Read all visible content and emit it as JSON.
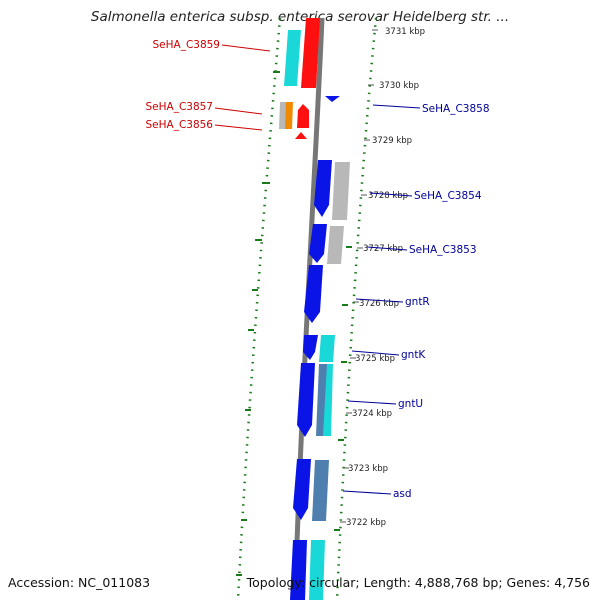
{
  "title": "Salmonella enterica subsp. enterica serovar Heidelberg str. ...",
  "footer": {
    "accession": "Accession: NC_011083",
    "info": "Topology: circular; Length: 4,888,768 bp; Genes: 4,756"
  },
  "kbp_labels": [
    "3731 kbp",
    "3730 kbp",
    "3729 kbp",
    "3728 kbp",
    "3727 kbp",
    "3726 kbp",
    "3725 kbp",
    "3724 kbp",
    "3723 kbp",
    "3722 kbp"
  ],
  "genes_left": [
    "SeHA_C3859",
    "SeHA_C3857",
    "SeHA_C3856"
  ],
  "genes_right": [
    "SeHA_C3858",
    "SeHA_C3854",
    "SeHA_C3853",
    "gntR",
    "gntK",
    "gntU",
    "asd"
  ],
  "colors": {
    "red_label": "#cc0000",
    "blue_label": "#000099",
    "cds_blue": "#0a14e6",
    "cds_red": "#ff1010",
    "cds_cyan": "#1ad8d8",
    "gray": "#b8b8b8",
    "orange": "#f08a00",
    "steel": "#4f7fae",
    "gc_green": "#1a7a1a"
  }
}
